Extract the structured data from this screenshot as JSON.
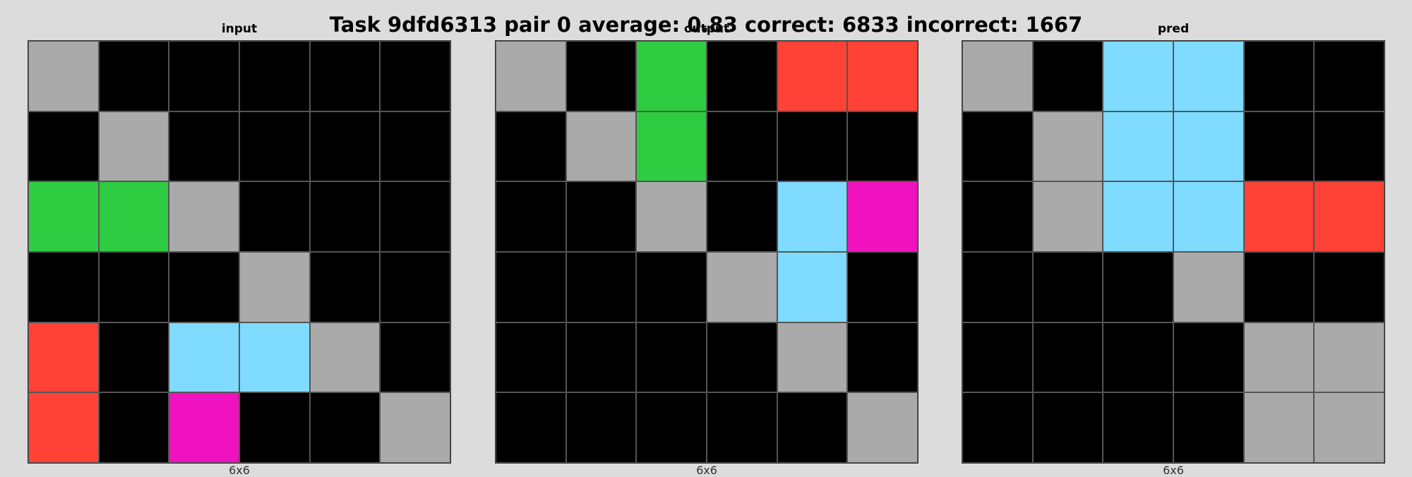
{
  "title": "Task 9dfd6313 pair 0 average: 0.83 correct: 6833 incorrect: 1667",
  "palette": {
    "0": "#000000",
    "1": "#1e93ff",
    "2": "#ff4136",
    "3": "#2ecc40",
    "4": "#ffdc00",
    "5": "#aaaaaa",
    "6": "#f012be",
    "7": "#ff851b",
    "8": "#7fdbff",
    "9": "#870c25"
  },
  "panels": [
    {
      "title": "input",
      "size_label": "6x6",
      "grid": [
        [
          5,
          0,
          0,
          0,
          0,
          0
        ],
        [
          0,
          5,
          0,
          0,
          0,
          0
        ],
        [
          3,
          3,
          5,
          0,
          0,
          0
        ],
        [
          0,
          0,
          0,
          5,
          0,
          0
        ],
        [
          2,
          0,
          8,
          8,
          5,
          0
        ],
        [
          2,
          0,
          6,
          0,
          0,
          5
        ]
      ]
    },
    {
      "title": "output",
      "size_label": "6x6",
      "grid": [
        [
          5,
          0,
          3,
          0,
          2,
          2
        ],
        [
          0,
          5,
          3,
          0,
          0,
          0
        ],
        [
          0,
          0,
          5,
          0,
          8,
          6
        ],
        [
          0,
          0,
          0,
          5,
          8,
          0
        ],
        [
          0,
          0,
          0,
          0,
          5,
          0
        ],
        [
          0,
          0,
          0,
          0,
          0,
          5
        ]
      ]
    },
    {
      "title": "pred",
      "size_label": "6x6",
      "grid": [
        [
          5,
          0,
          8,
          8,
          0,
          0
        ],
        [
          0,
          5,
          8,
          8,
          0,
          0
        ],
        [
          0,
          5,
          8,
          8,
          2,
          2
        ],
        [
          0,
          0,
          0,
          5,
          0,
          0
        ],
        [
          0,
          0,
          0,
          0,
          5,
          5
        ],
        [
          0,
          0,
          0,
          0,
          5,
          5
        ]
      ]
    }
  ]
}
